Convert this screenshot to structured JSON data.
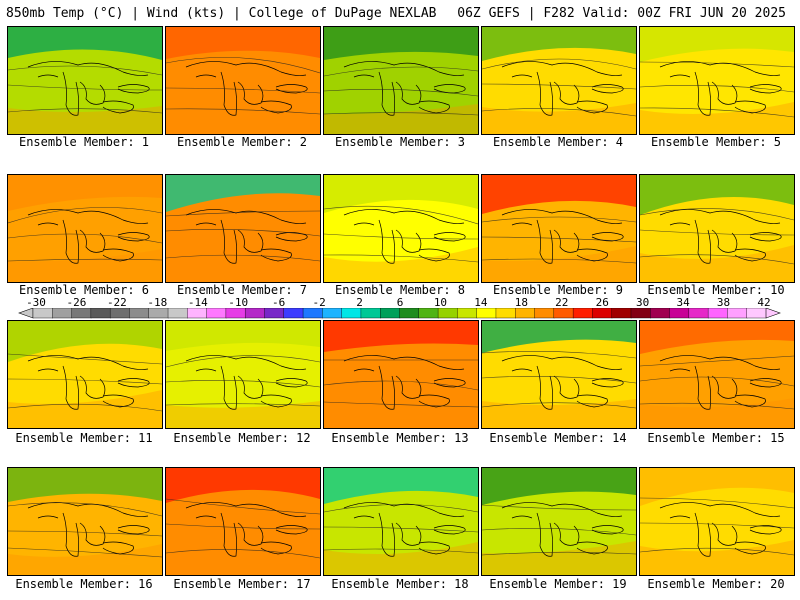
{
  "header": {
    "left": "850mb Temp (°C) | Wind (kts) | College of DuPage NEXLAB",
    "right": "06Z GEFS | F282 Valid: 00Z FRI JUN 20 2025"
  },
  "colorbar": {
    "ticks": [
      "-30",
      "-26",
      "-22",
      "-18",
      "-14",
      "-10",
      "-6",
      "-2",
      "2",
      "6",
      "10",
      "14",
      "18",
      "22",
      "26",
      "30",
      "34",
      "38",
      "42"
    ],
    "colors": [
      "#c8c8c8",
      "#a0a0a0",
      "#787878",
      "#5a5a5a",
      "#6e6e6e",
      "#8c8c8c",
      "#aaaaaa",
      "#c8c8c8",
      "#ffb4ff",
      "#ff78ff",
      "#e63ce6",
      "#b428c8",
      "#7828c8",
      "#3c3cff",
      "#1e78ff",
      "#1eb4ff",
      "#00e6e6",
      "#00c896",
      "#00a05a",
      "#1e8c1e",
      "#50b414",
      "#96d200",
      "#c8e600",
      "#ffff00",
      "#ffdc00",
      "#ffb400",
      "#ff8c00",
      "#ff5a00",
      "#ff1e00",
      "#dc0000",
      "#a00000",
      "#820014",
      "#a00050",
      "#c80096",
      "#e628c8",
      "#ff64ff",
      "#ffa0ff",
      "#ffc8ff"
    ]
  },
  "members": [
    {
      "label": "Ensemble Member: 1",
      "tint": "#b4dc00",
      "accent": "#00a05a"
    },
    {
      "label": "Ensemble Member: 2",
      "tint": "#ff8c00",
      "accent": "#ff5a00"
    },
    {
      "label": "Ensemble Member: 3",
      "tint": "#a0d200",
      "accent": "#1e8c1e"
    },
    {
      "label": "Ensemble Member: 4",
      "tint": "#ffdc00",
      "accent": "#50b414"
    },
    {
      "label": "Ensemble Member: 5",
      "tint": "#ffe600",
      "accent": "#c8e600"
    },
    {
      "label": "Ensemble Member: 6",
      "tint": "#ffa000",
      "accent": "#ff8c00"
    },
    {
      "label": "Ensemble Member: 7",
      "tint": "#ff8c00",
      "accent": "#00c896"
    },
    {
      "label": "Ensemble Member: 8",
      "tint": "#ffff00",
      "accent": "#c8e600"
    },
    {
      "label": "Ensemble Member: 9",
      "tint": "#ffb400",
      "accent": "#ff1e00"
    },
    {
      "label": "Ensemble Member: 10",
      "tint": "#ffdc00",
      "accent": "#50b414"
    },
    {
      "label": "Ensemble Member: 11",
      "tint": "#ffdc00",
      "accent": "#96d200"
    },
    {
      "label": "Ensemble Member: 12",
      "tint": "#e6f000",
      "accent": "#c8e600"
    },
    {
      "label": "Ensemble Member: 13",
      "tint": "#ff8c00",
      "accent": "#ff1e00"
    },
    {
      "label": "Ensemble Member: 14",
      "tint": "#ffdc00",
      "accent": "#00a05a"
    },
    {
      "label": "Ensemble Member: 15",
      "tint": "#ffa000",
      "accent": "#ff5a00"
    },
    {
      "label": "Ensemble Member: 16",
      "tint": "#ffb400",
      "accent": "#50b414"
    },
    {
      "label": "Ensemble Member: 17",
      "tint": "#ff8c00",
      "accent": "#ff1e00"
    },
    {
      "label": "Ensemble Member: 18",
      "tint": "#c8e600",
      "accent": "#00c896"
    },
    {
      "label": "Ensemble Member: 19",
      "tint": "#c8e600",
      "accent": "#1e8c1e"
    },
    {
      "label": "Ensemble Member: 20",
      "tint": "#ffdc00",
      "accent": "#ffb400"
    }
  ]
}
